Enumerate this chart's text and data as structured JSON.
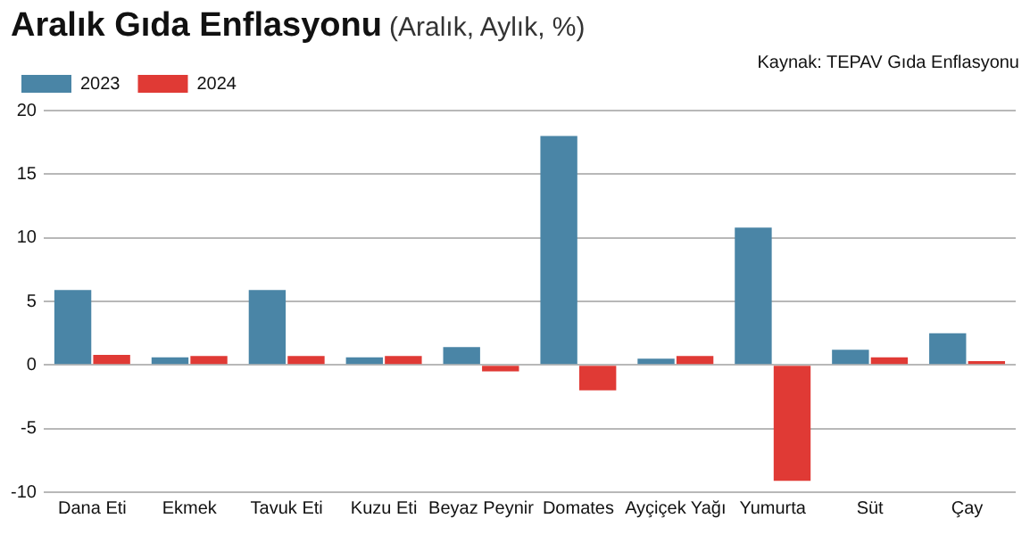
{
  "chart_data": {
    "type": "bar",
    "title": "Aralık Gıda Enflasyonu",
    "subtitle": "(Aralık, Aylık, %)",
    "annotations": [
      "Kaynak: TEPAV Gıda Enflasyonu"
    ],
    "categories": [
      "Dana Eti",
      "Ekmek",
      "Tavuk Eti",
      "Kuzu Eti",
      "Beyaz Peynir",
      "Domates",
      "Ayçiçek Yağı",
      "Yumurta",
      "Süt",
      "Çay"
    ],
    "series": [
      {
        "name": "2023",
        "color": "#4a85a6",
        "values": [
          5.9,
          0.6,
          5.9,
          0.6,
          1.4,
          18.0,
          0.5,
          10.8,
          1.2,
          2.5
        ]
      },
      {
        "name": "2024",
        "color": "#e03a35",
        "values": [
          0.8,
          0.7,
          0.7,
          0.7,
          -0.5,
          -2.0,
          0.7,
          -9.1,
          0.6,
          0.3
        ]
      }
    ],
    "ylim": [
      -10,
      20
    ],
    "yticks": [
      -10,
      -5,
      0,
      5,
      10,
      15,
      20
    ],
    "grid": "y",
    "legend": "top left"
  }
}
